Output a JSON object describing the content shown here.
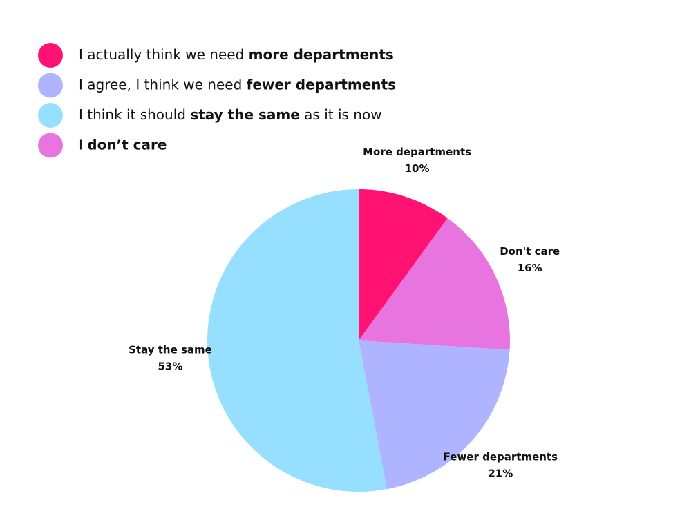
{
  "chart_data": {
    "type": "pie",
    "categories": [
      "More departments",
      "Don't care",
      "Fewer departments",
      "Stay the same"
    ],
    "values": [
      10,
      16,
      21,
      53
    ],
    "value_labels": [
      "10%",
      "16%",
      "21%",
      "53%"
    ],
    "colors": [
      "#ff1271",
      "#e874df",
      "#aeb4ff",
      "#97dfff"
    ],
    "legend": [
      {
        "color": "#ff1271",
        "parts": [
          {
            "text": "I actually think we need ",
            "bold": false
          },
          {
            "text": "more departments",
            "bold": true
          }
        ]
      },
      {
        "color": "#aeb4ff",
        "parts": [
          {
            "text": "I agree, I think we need ",
            "bold": false
          },
          {
            "text": "fewer departments",
            "bold": true
          }
        ]
      },
      {
        "color": "#97dfff",
        "parts": [
          {
            "text": "I think it should ",
            "bold": false
          },
          {
            "text": "stay the same",
            "bold": true
          },
          {
            "text": " as it is now",
            "bold": false
          }
        ]
      },
      {
        "color": "#e874df",
        "parts": [
          {
            "text": "I ",
            "bold": false
          },
          {
            "text": "don’t care",
            "bold": true
          }
        ]
      }
    ]
  }
}
